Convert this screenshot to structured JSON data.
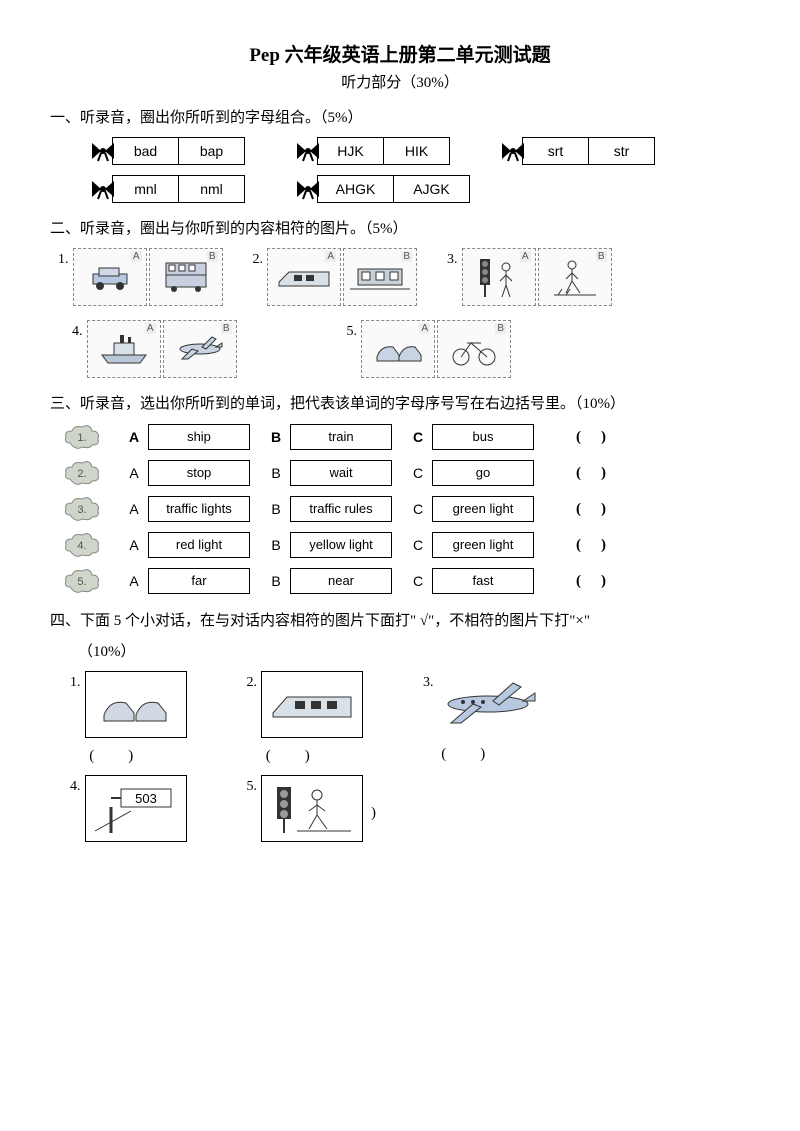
{
  "title": "Pep 六年级英语上册第二单元测试题",
  "subtitle": "听力部分（30%）",
  "s1": {
    "head": "一、听录音，圈出你所听到的字母组合。（5%）",
    "pairs": [
      [
        "bad",
        "bap"
      ],
      [
        "HJK",
        "HIK"
      ],
      [
        "srt",
        "str"
      ],
      [
        "mnl",
        "nml"
      ],
      [
        "AHGK",
        "AJGK"
      ]
    ]
  },
  "s2": {
    "head": "二、听录音，圈出与你听到的内容相符的图片。（5%）",
    "items": [
      {
        "n": "1.",
        "a": "car",
        "b": "bus"
      },
      {
        "n": "2.",
        "a": "train",
        "b": "subway"
      },
      {
        "n": "3.",
        "a": "traffic-light",
        "b": "crosswalk"
      },
      {
        "n": "4.",
        "a": "ship",
        "b": "plane"
      },
      {
        "n": "5.",
        "a": "shoes",
        "b": "bike"
      }
    ]
  },
  "s3": {
    "head": "三、听录音，选出你所听到的单词，把代表该单词的字母序号写在右边括号里。（10%）",
    "rows": [
      {
        "n": "1.",
        "a": "ship",
        "b": "train",
        "c": "bus",
        "bold": true
      },
      {
        "n": "2.",
        "a": "stop",
        "b": "wait",
        "c": "go"
      },
      {
        "n": "3.",
        "a": "traffic lights",
        "b": "traffic rules",
        "c": "green light"
      },
      {
        "n": "4.",
        "a": "red light",
        "b": "yellow light",
        "c": "green light"
      },
      {
        "n": "5.",
        "a": "far",
        "b": "near",
        "c": "fast"
      }
    ]
  },
  "s4": {
    "head": "四、下面 5 个小对话，在与对话内容相符的图片下面打\" √\"，不相符的图片下打\"×\"",
    "pct": "（10%）",
    "items": [
      {
        "n": "1.",
        "img": "shoes"
      },
      {
        "n": "2.",
        "img": "train"
      },
      {
        "n": "3.",
        "img": "plane"
      },
      {
        "n": "4.",
        "img": "bus-503"
      },
      {
        "n": "5.",
        "img": "traffic-light-boy"
      }
    ]
  }
}
